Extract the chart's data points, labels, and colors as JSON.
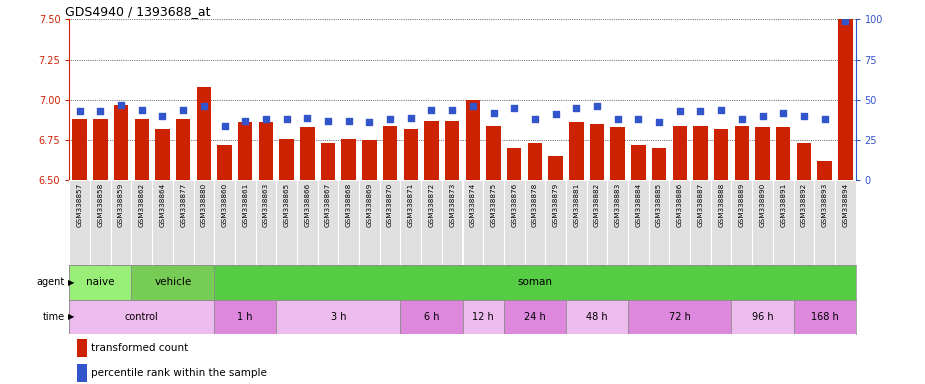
{
  "title": "GDS4940 / 1393688_at",
  "samples": [
    "GSM338857",
    "GSM338858",
    "GSM338859",
    "GSM338862",
    "GSM338864",
    "GSM338877",
    "GSM338880",
    "GSM338860",
    "GSM338861",
    "GSM338863",
    "GSM338865",
    "GSM338866",
    "GSM338867",
    "GSM338868",
    "GSM338869",
    "GSM338870",
    "GSM338871",
    "GSM338872",
    "GSM338873",
    "GSM338874",
    "GSM338875",
    "GSM338876",
    "GSM338878",
    "GSM338879",
    "GSM338881",
    "GSM338882",
    "GSM338883",
    "GSM338884",
    "GSM338885",
    "GSM338886",
    "GSM338887",
    "GSM338888",
    "GSM338889",
    "GSM338890",
    "GSM338891",
    "GSM338892",
    "GSM338893",
    "GSM338894"
  ],
  "bar_values": [
    6.88,
    6.88,
    6.97,
    6.88,
    6.82,
    6.88,
    7.08,
    6.72,
    6.86,
    6.86,
    6.76,
    6.83,
    6.73,
    6.76,
    6.75,
    6.84,
    6.82,
    6.87,
    6.87,
    7.0,
    6.84,
    6.7,
    6.73,
    6.65,
    6.86,
    6.85,
    6.83,
    6.72,
    6.7,
    6.84,
    6.84,
    6.82,
    6.84,
    6.83,
    6.83,
    6.73,
    6.62,
    7.5
  ],
  "percentile_values": [
    43,
    43,
    47,
    44,
    40,
    44,
    46,
    34,
    37,
    38,
    38,
    39,
    37,
    37,
    36,
    38,
    39,
    44,
    44,
    46,
    42,
    45,
    38,
    41,
    45,
    46,
    38,
    38,
    36,
    43,
    43,
    44,
    38,
    40,
    42,
    40,
    38,
    99
  ],
  "ylim_left": [
    6.5,
    7.5
  ],
  "ylim_right": [
    0,
    100
  ],
  "bar_color": "#cc2200",
  "dot_color": "#3355cc",
  "yticks_left": [
    6.5,
    6.75,
    7.0,
    7.25,
    7.5
  ],
  "yticks_right": [
    0,
    25,
    50,
    75,
    100
  ],
  "agent_groups": [
    {
      "label": "naive",
      "start": 0,
      "end": 3,
      "color": "#99ee77"
    },
    {
      "label": "vehicle",
      "start": 3,
      "end": 7,
      "color": "#77cc55"
    },
    {
      "label": "soman",
      "start": 7,
      "end": 38,
      "color": "#55cc44"
    }
  ],
  "time_groups": [
    {
      "label": "control",
      "start": 0,
      "end": 7,
      "color": "#eebbee"
    },
    {
      "label": "1 h",
      "start": 7,
      "end": 10,
      "color": "#dd88dd"
    },
    {
      "label": "3 h",
      "start": 10,
      "end": 16,
      "color": "#eebbee"
    },
    {
      "label": "6 h",
      "start": 16,
      "end": 19,
      "color": "#dd88dd"
    },
    {
      "label": "12 h",
      "start": 19,
      "end": 21,
      "color": "#eebbee"
    },
    {
      "label": "24 h",
      "start": 21,
      "end": 24,
      "color": "#dd88dd"
    },
    {
      "label": "48 h",
      "start": 24,
      "end": 27,
      "color": "#eebbee"
    },
    {
      "label": "72 h",
      "start": 27,
      "end": 32,
      "color": "#dd88dd"
    },
    {
      "label": "96 h",
      "start": 32,
      "end": 35,
      "color": "#eebbee"
    },
    {
      "label": "168 h",
      "start": 35,
      "end": 38,
      "color": "#dd88dd"
    }
  ],
  "legend_items": [
    {
      "label": "transformed count",
      "color": "#cc2200"
    },
    {
      "label": "percentile rank within the sample",
      "color": "#3355cc"
    }
  ],
  "background_color": "#ffffff"
}
